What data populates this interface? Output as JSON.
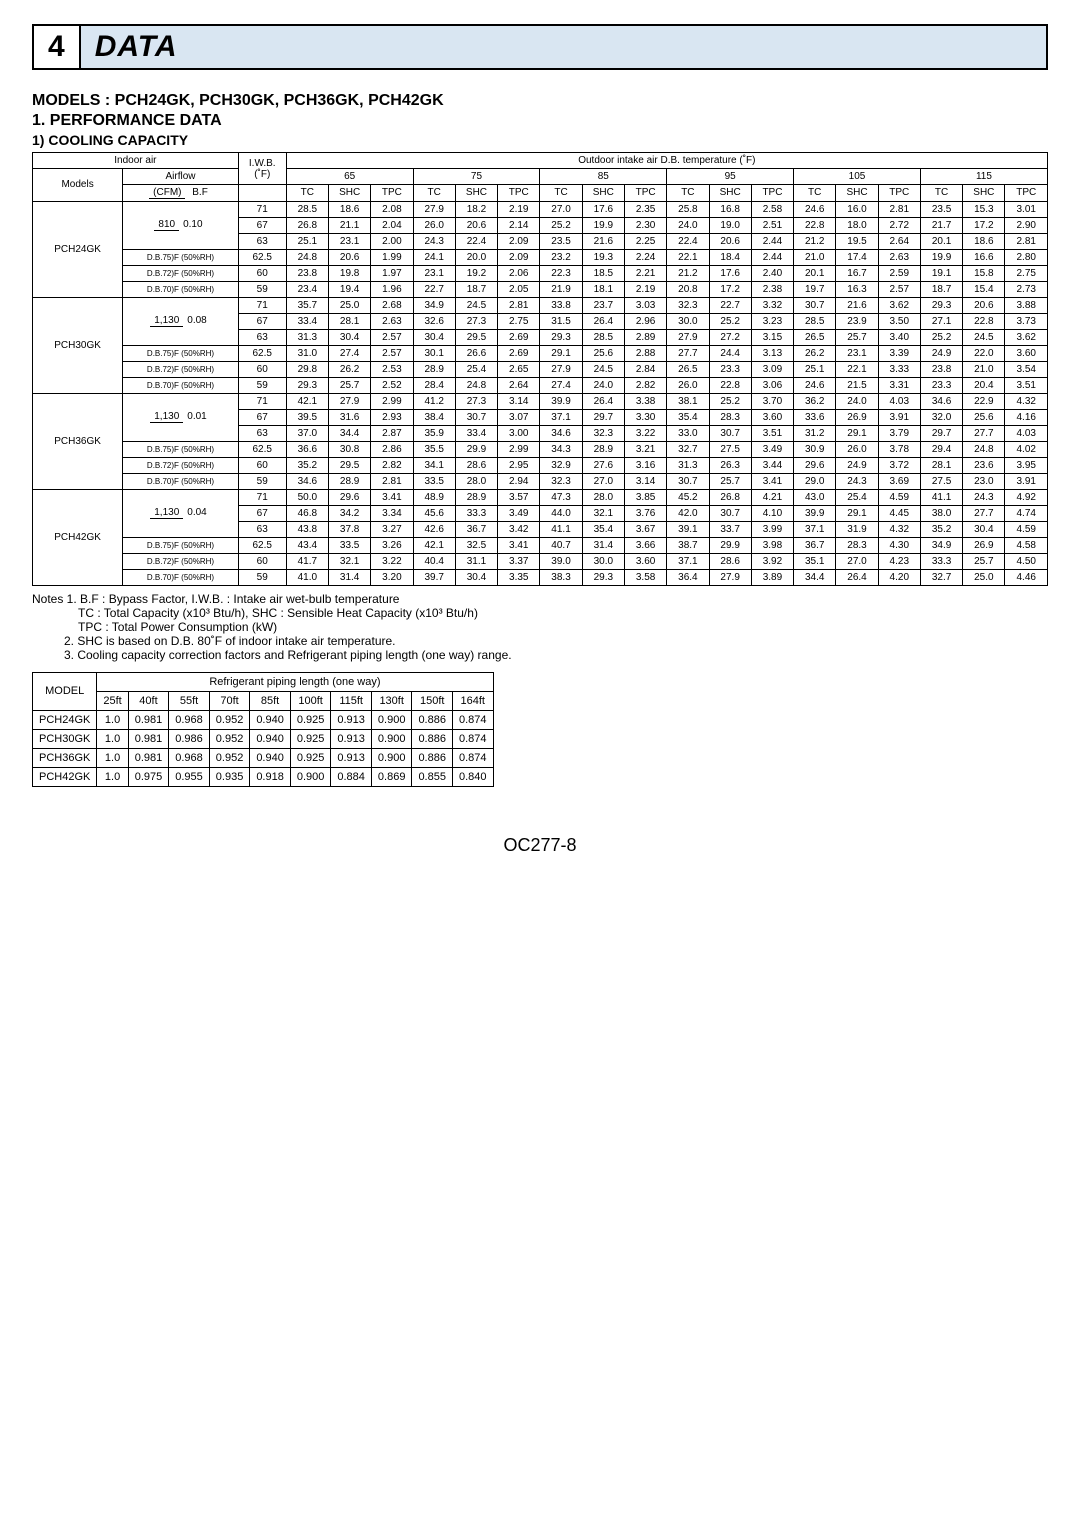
{
  "section": {
    "num": "4",
    "title": "DATA"
  },
  "headers": {
    "models": "MODELS : PCH24GK, PCH30GK, PCH36GK, PCH42GK",
    "perf": "1. PERFORMANCE DATA",
    "cool": "1) COOLING CAPACITY"
  },
  "cooling_table": {
    "top": {
      "indoor_air": "Indoor air",
      "outdoor": "Outdoor intake air D.B. temperature (˚F)",
      "models": "Models",
      "airflow": "Airflow",
      "cfm_bf": "(CFM)",
      "bf": "B.F",
      "iwb": "I.W.B.",
      "iwb_unit": "(˚F)",
      "temps": [
        "65",
        "75",
        "85",
        "95",
        "105",
        "115"
      ],
      "subcols": [
        "TC",
        "SHC",
        "TPC"
      ]
    },
    "groups": [
      {
        "model": "PCH24GK",
        "rows": [
          {
            "airflow_top": "810",
            "airflow_bot": "0.10",
            "airflow_rowspan": 3,
            "iwb": "71",
            "v": [
              "28.5",
              "18.6",
              "2.08",
              "27.9",
              "18.2",
              "2.19",
              "27.0",
              "17.6",
              "2.35",
              "25.8",
              "16.8",
              "2.58",
              "24.6",
              "16.0",
              "2.81",
              "23.5",
              "15.3",
              "3.01"
            ]
          },
          {
            "iwb": "67",
            "v": [
              "26.8",
              "21.1",
              "2.04",
              "26.0",
              "20.6",
              "2.14",
              "25.2",
              "19.9",
              "2.30",
              "24.0",
              "19.0",
              "2.51",
              "22.8",
              "18.0",
              "2.72",
              "21.7",
              "17.2",
              "2.90"
            ]
          },
          {
            "iwb": "63",
            "v": [
              "25.1",
              "23.1",
              "2.00",
              "24.3",
              "22.4",
              "2.09",
              "23.5",
              "21.6",
              "2.25",
              "22.4",
              "20.6",
              "2.44",
              "21.2",
              "19.5",
              "2.64",
              "20.1",
              "18.6",
              "2.81"
            ]
          },
          {
            "airflow_label": "D.B.75)F (50%RH)",
            "iwb": "62.5",
            "v": [
              "24.8",
              "20.6",
              "1.99",
              "24.1",
              "20.0",
              "2.09",
              "23.2",
              "19.3",
              "2.24",
              "22.1",
              "18.4",
              "2.44",
              "21.0",
              "17.4",
              "2.63",
              "19.9",
              "16.6",
              "2.80"
            ]
          },
          {
            "airflow_label": "D.B.72)F (50%RH)",
            "iwb": "60",
            "v": [
              "23.8",
              "19.8",
              "1.97",
              "23.1",
              "19.2",
              "2.06",
              "22.3",
              "18.5",
              "2.21",
              "21.2",
              "17.6",
              "2.40",
              "20.1",
              "16.7",
              "2.59",
              "19.1",
              "15.8",
              "2.75"
            ]
          },
          {
            "airflow_label": "D.B.70)F (50%RH)",
            "iwb": "59",
            "v": [
              "23.4",
              "19.4",
              "1.96",
              "22.7",
              "18.7",
              "2.05",
              "21.9",
              "18.1",
              "2.19",
              "20.8",
              "17.2",
              "2.38",
              "19.7",
              "16.3",
              "2.57",
              "18.7",
              "15.4",
              "2.73"
            ]
          }
        ]
      },
      {
        "model": "PCH30GK",
        "rows": [
          {
            "airflow_top": "1,130",
            "airflow_bot": "0.08",
            "airflow_rowspan": 3,
            "iwb": "71",
            "v": [
              "35.7",
              "25.0",
              "2.68",
              "34.9",
              "24.5",
              "2.81",
              "33.8",
              "23.7",
              "3.03",
              "32.3",
              "22.7",
              "3.32",
              "30.7",
              "21.6",
              "3.62",
              "29.3",
              "20.6",
              "3.88"
            ]
          },
          {
            "iwb": "67",
            "v": [
              "33.4",
              "28.1",
              "2.63",
              "32.6",
              "27.3",
              "2.75",
              "31.5",
              "26.4",
              "2.96",
              "30.0",
              "25.2",
              "3.23",
              "28.5",
              "23.9",
              "3.50",
              "27.1",
              "22.8",
              "3.73"
            ]
          },
          {
            "iwb": "63",
            "v": [
              "31.3",
              "30.4",
              "2.57",
              "30.4",
              "29.5",
              "2.69",
              "29.3",
              "28.5",
              "2.89",
              "27.9",
              "27.2",
              "3.15",
              "26.5",
              "25.7",
              "3.40",
              "25.2",
              "24.5",
              "3.62"
            ]
          },
          {
            "airflow_label": "D.B.75)F (50%RH)",
            "iwb": "62.5",
            "v": [
              "31.0",
              "27.4",
              "2.57",
              "30.1",
              "26.6",
              "2.69",
              "29.1",
              "25.6",
              "2.88",
              "27.7",
              "24.4",
              "3.13",
              "26.2",
              "23.1",
              "3.39",
              "24.9",
              "22.0",
              "3.60"
            ]
          },
          {
            "airflow_label": "D.B.72)F (50%RH)",
            "iwb": "60",
            "v": [
              "29.8",
              "26.2",
              "2.53",
              "28.9",
              "25.4",
              "2.65",
              "27.9",
              "24.5",
              "2.84",
              "26.5",
              "23.3",
              "3.09",
              "25.1",
              "22.1",
              "3.33",
              "23.8",
              "21.0",
              "3.54"
            ]
          },
          {
            "airflow_label": "D.B.70)F (50%RH)",
            "iwb": "59",
            "v": [
              "29.3",
              "25.7",
              "2.52",
              "28.4",
              "24.8",
              "2.64",
              "27.4",
              "24.0",
              "2.82",
              "26.0",
              "22.8",
              "3.06",
              "24.6",
              "21.5",
              "3.31",
              "23.3",
              "20.4",
              "3.51"
            ]
          }
        ]
      },
      {
        "model": "PCH36GK",
        "rows": [
          {
            "airflow_top": "1,130",
            "airflow_bot": "0.01",
            "airflow_rowspan": 3,
            "iwb": "71",
            "v": [
              "42.1",
              "27.9",
              "2.99",
              "41.2",
              "27.3",
              "3.14",
              "39.9",
              "26.4",
              "3.38",
              "38.1",
              "25.2",
              "3.70",
              "36.2",
              "24.0",
              "4.03",
              "34.6",
              "22.9",
              "4.32"
            ]
          },
          {
            "iwb": "67",
            "v": [
              "39.5",
              "31.6",
              "2.93",
              "38.4",
              "30.7",
              "3.07",
              "37.1",
              "29.7",
              "3.30",
              "35.4",
              "28.3",
              "3.60",
              "33.6",
              "26.9",
              "3.91",
              "32.0",
              "25.6",
              "4.16"
            ]
          },
          {
            "iwb": "63",
            "v": [
              "37.0",
              "34.4",
              "2.87",
              "35.9",
              "33.4",
              "3.00",
              "34.6",
              "32.3",
              "3.22",
              "33.0",
              "30.7",
              "3.51",
              "31.2",
              "29.1",
              "3.79",
              "29.7",
              "27.7",
              "4.03"
            ]
          },
          {
            "airflow_label": "D.B.75)F (50%RH)",
            "iwb": "62.5",
            "v": [
              "36.6",
              "30.8",
              "2.86",
              "35.5",
              "29.9",
              "2.99",
              "34.3",
              "28.9",
              "3.21",
              "32.7",
              "27.5",
              "3.49",
              "30.9",
              "26.0",
              "3.78",
              "29.4",
              "24.8",
              "4.02"
            ]
          },
          {
            "airflow_label": "D.B.72)F (50%RH)",
            "iwb": "60",
            "v": [
              "35.2",
              "29.5",
              "2.82",
              "34.1",
              "28.6",
              "2.95",
              "32.9",
              "27.6",
              "3.16",
              "31.3",
              "26.3",
              "3.44",
              "29.6",
              "24.9",
              "3.72",
              "28.1",
              "23.6",
              "3.95"
            ]
          },
          {
            "airflow_label": "D.B.70)F (50%RH)",
            "iwb": "59",
            "v": [
              "34.6",
              "28.9",
              "2.81",
              "33.5",
              "28.0",
              "2.94",
              "32.3",
              "27.0",
              "3.14",
              "30.7",
              "25.7",
              "3.41",
              "29.0",
              "24.3",
              "3.69",
              "27.5",
              "23.0",
              "3.91"
            ]
          }
        ]
      },
      {
        "model": "PCH42GK",
        "rows": [
          {
            "airflow_top": "1,130",
            "airflow_bot": "0.04",
            "airflow_rowspan": 3,
            "iwb": "71",
            "v": [
              "50.0",
              "29.6",
              "3.41",
              "48.9",
              "28.9",
              "3.57",
              "47.3",
              "28.0",
              "3.85",
              "45.2",
              "26.8",
              "4.21",
              "43.0",
              "25.4",
              "4.59",
              "41.1",
              "24.3",
              "4.92"
            ]
          },
          {
            "iwb": "67",
            "v": [
              "46.8",
              "34.2",
              "3.34",
              "45.6",
              "33.3",
              "3.49",
              "44.0",
              "32.1",
              "3.76",
              "42.0",
              "30.7",
              "4.10",
              "39.9",
              "29.1",
              "4.45",
              "38.0",
              "27.7",
              "4.74"
            ]
          },
          {
            "iwb": "63",
            "v": [
              "43.8",
              "37.8",
              "3.27",
              "42.6",
              "36.7",
              "3.42",
              "41.1",
              "35.4",
              "3.67",
              "39.1",
              "33.7",
              "3.99",
              "37.1",
              "31.9",
              "4.32",
              "35.2",
              "30.4",
              "4.59"
            ]
          },
          {
            "airflow_label": "D.B.75)F (50%RH)",
            "iwb": "62.5",
            "v": [
              "43.4",
              "33.5",
              "3.26",
              "42.1",
              "32.5",
              "3.41",
              "40.7",
              "31.4",
              "3.66",
              "38.7",
              "29.9",
              "3.98",
              "36.7",
              "28.3",
              "4.30",
              "34.9",
              "26.9",
              "4.58"
            ]
          },
          {
            "airflow_label": "D.B.72)F (50%RH)",
            "iwb": "60",
            "v": [
              "41.7",
              "32.1",
              "3.22",
              "40.4",
              "31.1",
              "3.37",
              "39.0",
              "30.0",
              "3.60",
              "37.1",
              "28.6",
              "3.92",
              "35.1",
              "27.0",
              "4.23",
              "33.3",
              "25.7",
              "4.50"
            ]
          },
          {
            "airflow_label": "D.B.70)F (50%RH)",
            "iwb": "59",
            "v": [
              "41.0",
              "31.4",
              "3.20",
              "39.7",
              "30.4",
              "3.35",
              "38.3",
              "29.3",
              "3.58",
              "36.4",
              "27.9",
              "3.89",
              "34.4",
              "26.4",
              "4.20",
              "32.7",
              "25.0",
              "4.46"
            ]
          }
        ]
      }
    ]
  },
  "notes": {
    "l1": "Notes 1. B.F : Bypass Factor, I.W.B. : Intake air wet-bulb temperature",
    "l2": "TC : Total Capacity (x10³  Btu/h), SHC : Sensible Heat Capacity (x10³  Btu/h)",
    "l3": "TPC : Total Power Consumption (kW)",
    "l4": "2. SHC is based on D.B. 80˚F of indoor intake air temperature.",
    "l5": "3. Cooling capacity correction factors and Refrigerant piping length (one way) range."
  },
  "refr_table": {
    "model_hdr": "MODEL",
    "title": "Refrigerant piping length (one way)",
    "cols": [
      "25ft",
      "40ft",
      "55ft",
      "70ft",
      "85ft",
      "100ft",
      "115ft",
      "130ft",
      "150ft",
      "164ft"
    ],
    "rows": [
      {
        "m": "PCH24GK",
        "v": [
          "1.0",
          "0.981",
          "0.968",
          "0.952",
          "0.940",
          "0.925",
          "0.913",
          "0.900",
          "0.886",
          "0.874"
        ]
      },
      {
        "m": "PCH30GK",
        "v": [
          "1.0",
          "0.981",
          "0.986",
          "0.952",
          "0.940",
          "0.925",
          "0.913",
          "0.900",
          "0.886",
          "0.874"
        ]
      },
      {
        "m": "PCH36GK",
        "v": [
          "1.0",
          "0.981",
          "0.968",
          "0.952",
          "0.940",
          "0.925",
          "0.913",
          "0.900",
          "0.886",
          "0.874"
        ]
      },
      {
        "m": "PCH42GK",
        "v": [
          "1.0",
          "0.975",
          "0.955",
          "0.935",
          "0.918",
          "0.900",
          "0.884",
          "0.869",
          "0.855",
          "0.840"
        ]
      }
    ]
  },
  "footer": "OC277-8"
}
